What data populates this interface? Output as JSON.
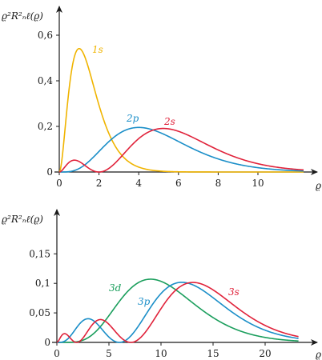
{
  "chart_data": [
    {
      "type": "line",
      "ylabel": "ϱ²R²ₙℓ(ϱ)",
      "xlabel": "ϱ",
      "xlim": [
        0,
        13
      ],
      "ylim": [
        0,
        0.7
      ],
      "xticks": [
        "0",
        "2",
        "4",
        "6",
        "8",
        "10"
      ],
      "xtick_values": [
        0,
        2,
        4,
        6,
        8,
        10
      ],
      "yticks": [
        "0",
        "0,2",
        "0,4",
        "0,6"
      ],
      "ytick_values": [
        0,
        0.2,
        0.4,
        0.6
      ],
      "grid": false,
      "series": [
        {
          "name": "1s",
          "color": "#f0b400",
          "function": "rho^2 R_10^2",
          "peak": {
            "x": 1,
            "y": 0.54
          }
        },
        {
          "name": "2p",
          "color": "#1a8ec8",
          "function": "rho^2 R_21^2",
          "peak": {
            "x": 4,
            "y": 0.195
          }
        },
        {
          "name": "2s",
          "color": "#e0223a",
          "function": "rho^2 R_20^2",
          "peak": {
            "x": 5.24,
            "y": 0.19
          }
        }
      ]
    },
    {
      "type": "line",
      "ylabel": "ϱ²R²ₙℓ(ϱ)",
      "xlabel": "ϱ",
      "xlim": [
        0,
        24
      ],
      "ylim": [
        0,
        0.18
      ],
      "xticks": [
        "0",
        "5",
        "10",
        "15",
        "20"
      ],
      "xtick_values": [
        0,
        5,
        10,
        15,
        20
      ],
      "yticks": [
        "0",
        "0,05",
        "0,1",
        "0,15"
      ],
      "ytick_values": [
        0,
        0.05,
        0.1,
        0.15
      ],
      "grid": false,
      "series": [
        {
          "name": "3d",
          "color": "#1a9e5c",
          "function": "rho^2 R_32^2",
          "peak": {
            "x": 9,
            "y": 0.107
          }
        },
        {
          "name": "3p",
          "color": "#1a8ec8",
          "function": "rho^2 R_31^2",
          "peak": {
            "x": 12,
            "y": 0.102
          }
        },
        {
          "name": "3s",
          "color": "#e0223a",
          "function": "rho^2 R_30^2",
          "peak": {
            "x": 13.1,
            "y": 0.101
          }
        }
      ]
    }
  ]
}
